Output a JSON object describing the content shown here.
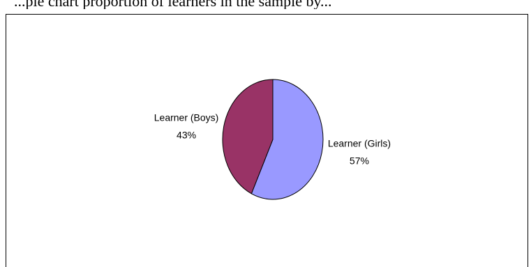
{
  "page": {
    "top_text": "...pie chart proportion of learners in the sample by..."
  },
  "chart_data": {
    "type": "pie",
    "title": "",
    "start_angle_deg": 0,
    "direction": "clockwise",
    "slices": [
      {
        "label": "Learner  (Girls)",
        "percent_label": "57%",
        "value": 57,
        "color": "#9999ff",
        "border": "#000000"
      },
      {
        "label": "Learner  (Boys)",
        "percent_label": "43%",
        "value": 43,
        "color": "#993366",
        "border": "#000000"
      }
    ],
    "legend": "none",
    "data_labels": "outside-with-percentage"
  }
}
